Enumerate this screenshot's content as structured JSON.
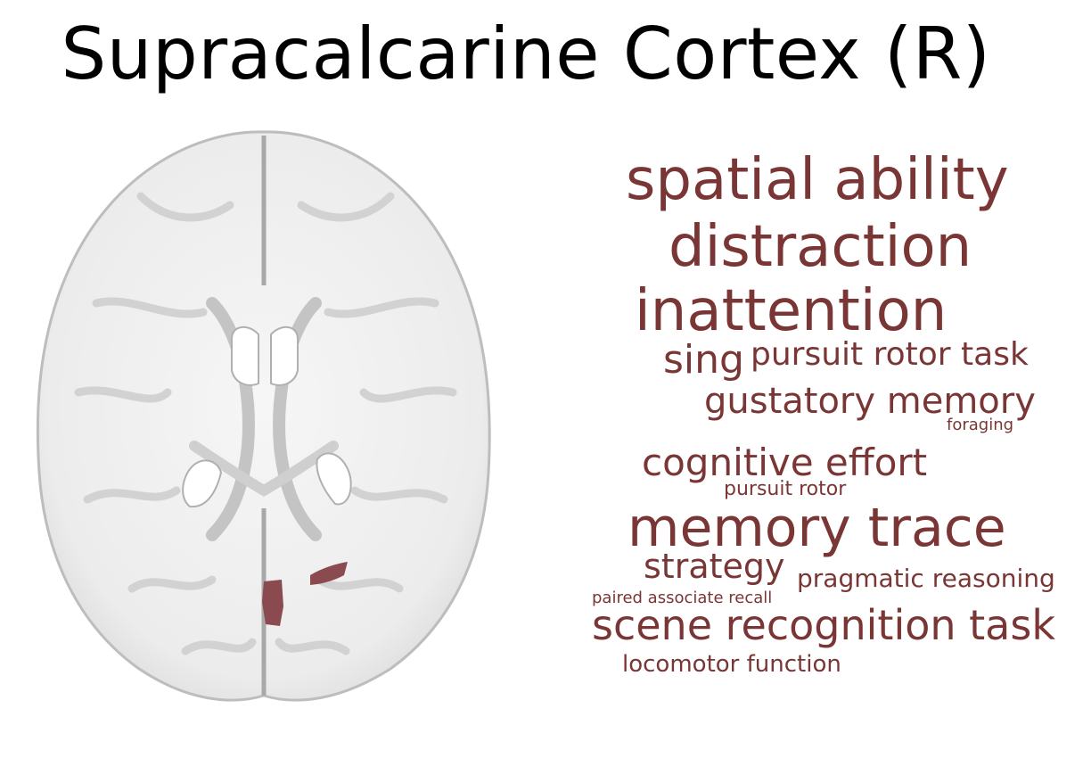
{
  "title": "Supracalcarine Cortex (R)",
  "colors": {
    "accent": "#7a3535",
    "highlight": "#8b4a4f",
    "background": "#ffffff",
    "brain_fill": "#f3f3f3",
    "brain_shadow": "#c8c8c8"
  },
  "word_cloud": [
    {
      "text": "spatial ability"
    },
    {
      "text": "distraction"
    },
    {
      "text": "inattention"
    },
    {
      "text": "sing"
    },
    {
      "text": "pursuit rotor task"
    },
    {
      "text": "gustatory memory"
    },
    {
      "text": "foraging"
    },
    {
      "text": "cognitive effort"
    },
    {
      "text": "pursuit rotor"
    },
    {
      "text": "memory trace"
    },
    {
      "text": "strategy"
    },
    {
      "text": "pragmatic reasoning"
    },
    {
      "text": "paired associate recall"
    },
    {
      "text": "scene recognition task"
    },
    {
      "text": "locomotor function"
    }
  ]
}
